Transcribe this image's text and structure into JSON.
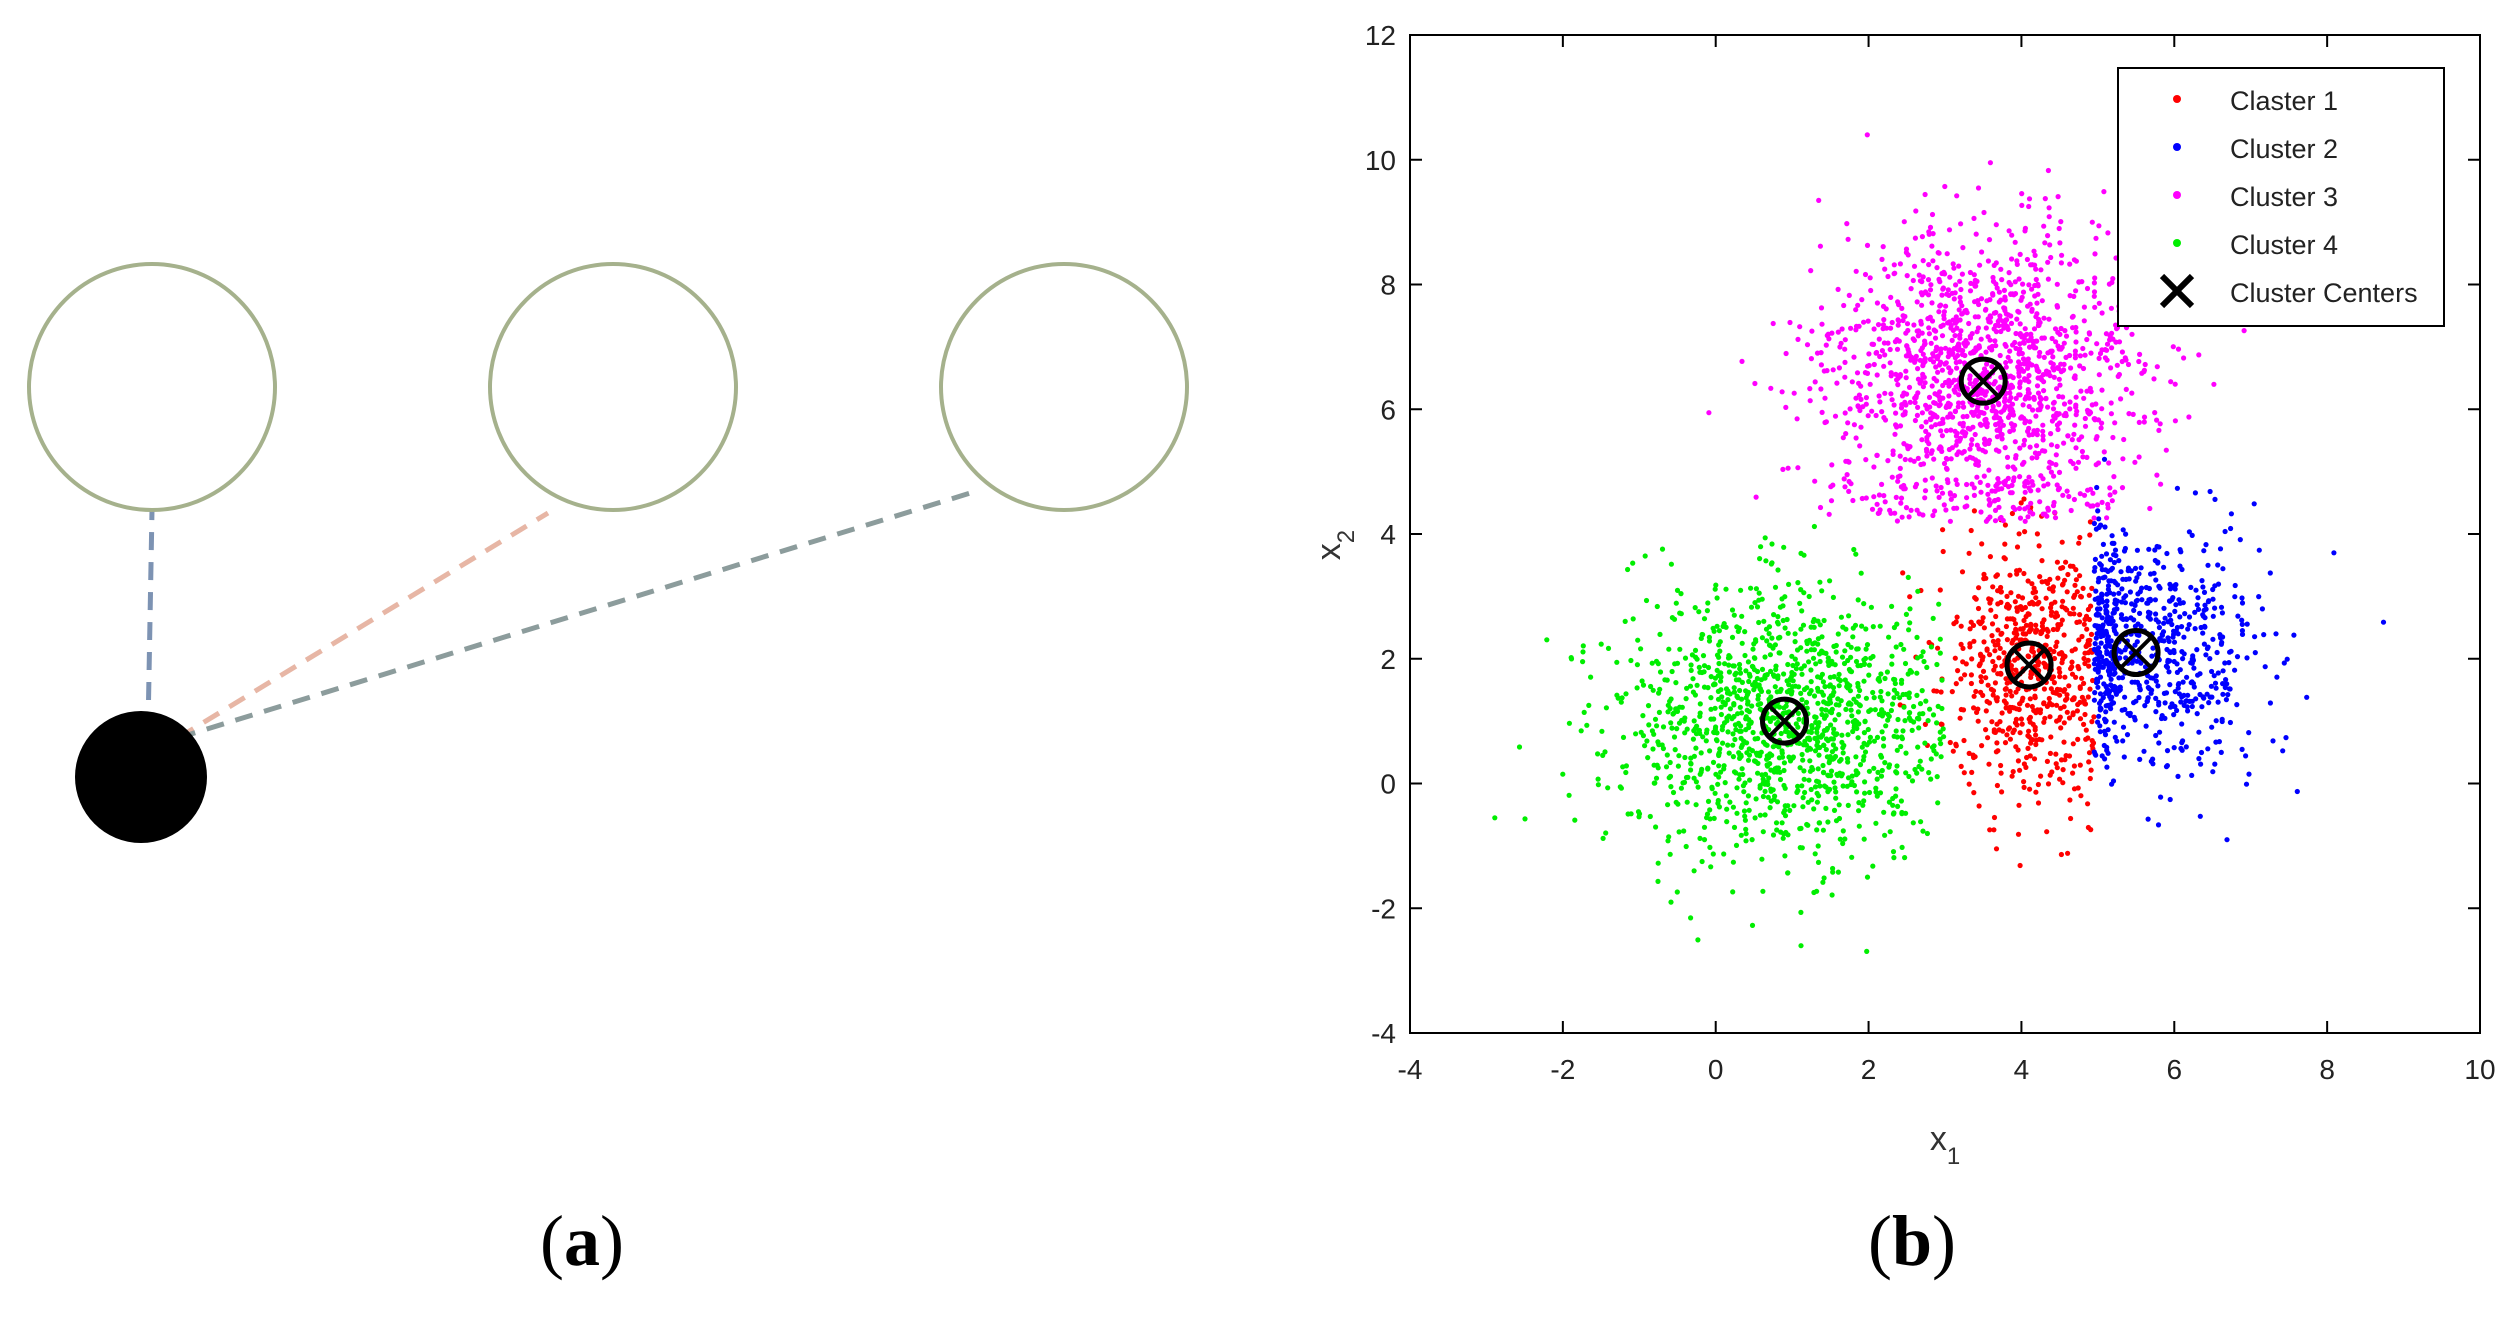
{
  "panels": {
    "a": {
      "label_open": "(",
      "label_letter": "a",
      "label_close": ")"
    },
    "b": {
      "label_open": "(",
      "label_letter": "b",
      "label_close": ")"
    }
  },
  "diagram_a": {
    "ring_color": "#a5b18c",
    "point_color": "#000000",
    "links": [
      {
        "to_ring": 0,
        "color": "#7d93b3"
      },
      {
        "to_ring": 1,
        "color": "#e7b6a5"
      },
      {
        "to_ring": 2,
        "color": "#8c9c9c"
      }
    ]
  },
  "chart_data": {
    "type": "scatter",
    "xlabel_main": "x",
    "xlabel_sub": "1",
    "ylabel_main": "x",
    "ylabel_sub": "2",
    "xlim": [
      -4,
      10
    ],
    "ylim": [
      -4,
      12
    ],
    "xticks": [
      -4,
      -2,
      0,
      2,
      4,
      6,
      8,
      10
    ],
    "yticks": [
      -4,
      -2,
      0,
      2,
      4,
      6,
      8,
      10,
      12
    ],
    "grid": false,
    "legend_position": "top-right",
    "series": [
      {
        "name": "Claster 1",
        "color": "#ff0000",
        "center": [
          4.1,
          1.9
        ],
        "spread": [
          0.55,
          1.05
        ],
        "count": 650
      },
      {
        "name": "Cluster 2",
        "color": "#0000ff",
        "center": [
          5.6,
          2.1
        ],
        "spread": [
          0.8,
          1.0
        ],
        "count": 700
      },
      {
        "name": "Cluster 3",
        "color": "#ff00ff",
        "center": [
          3.5,
          6.5
        ],
        "spread": [
          1.05,
          1.2
        ],
        "count": 1500
      },
      {
        "name": "Cluster 4",
        "color": "#00ee00",
        "center": [
          0.9,
          1.0
        ],
        "spread": [
          1.05,
          1.05
        ],
        "count": 1300
      }
    ],
    "centers": {
      "name": "Cluster Centers",
      "points": [
        [
          4.1,
          1.9
        ],
        [
          5.5,
          2.1
        ],
        [
          3.5,
          6.45
        ],
        [
          0.9,
          1.0
        ]
      ]
    }
  }
}
